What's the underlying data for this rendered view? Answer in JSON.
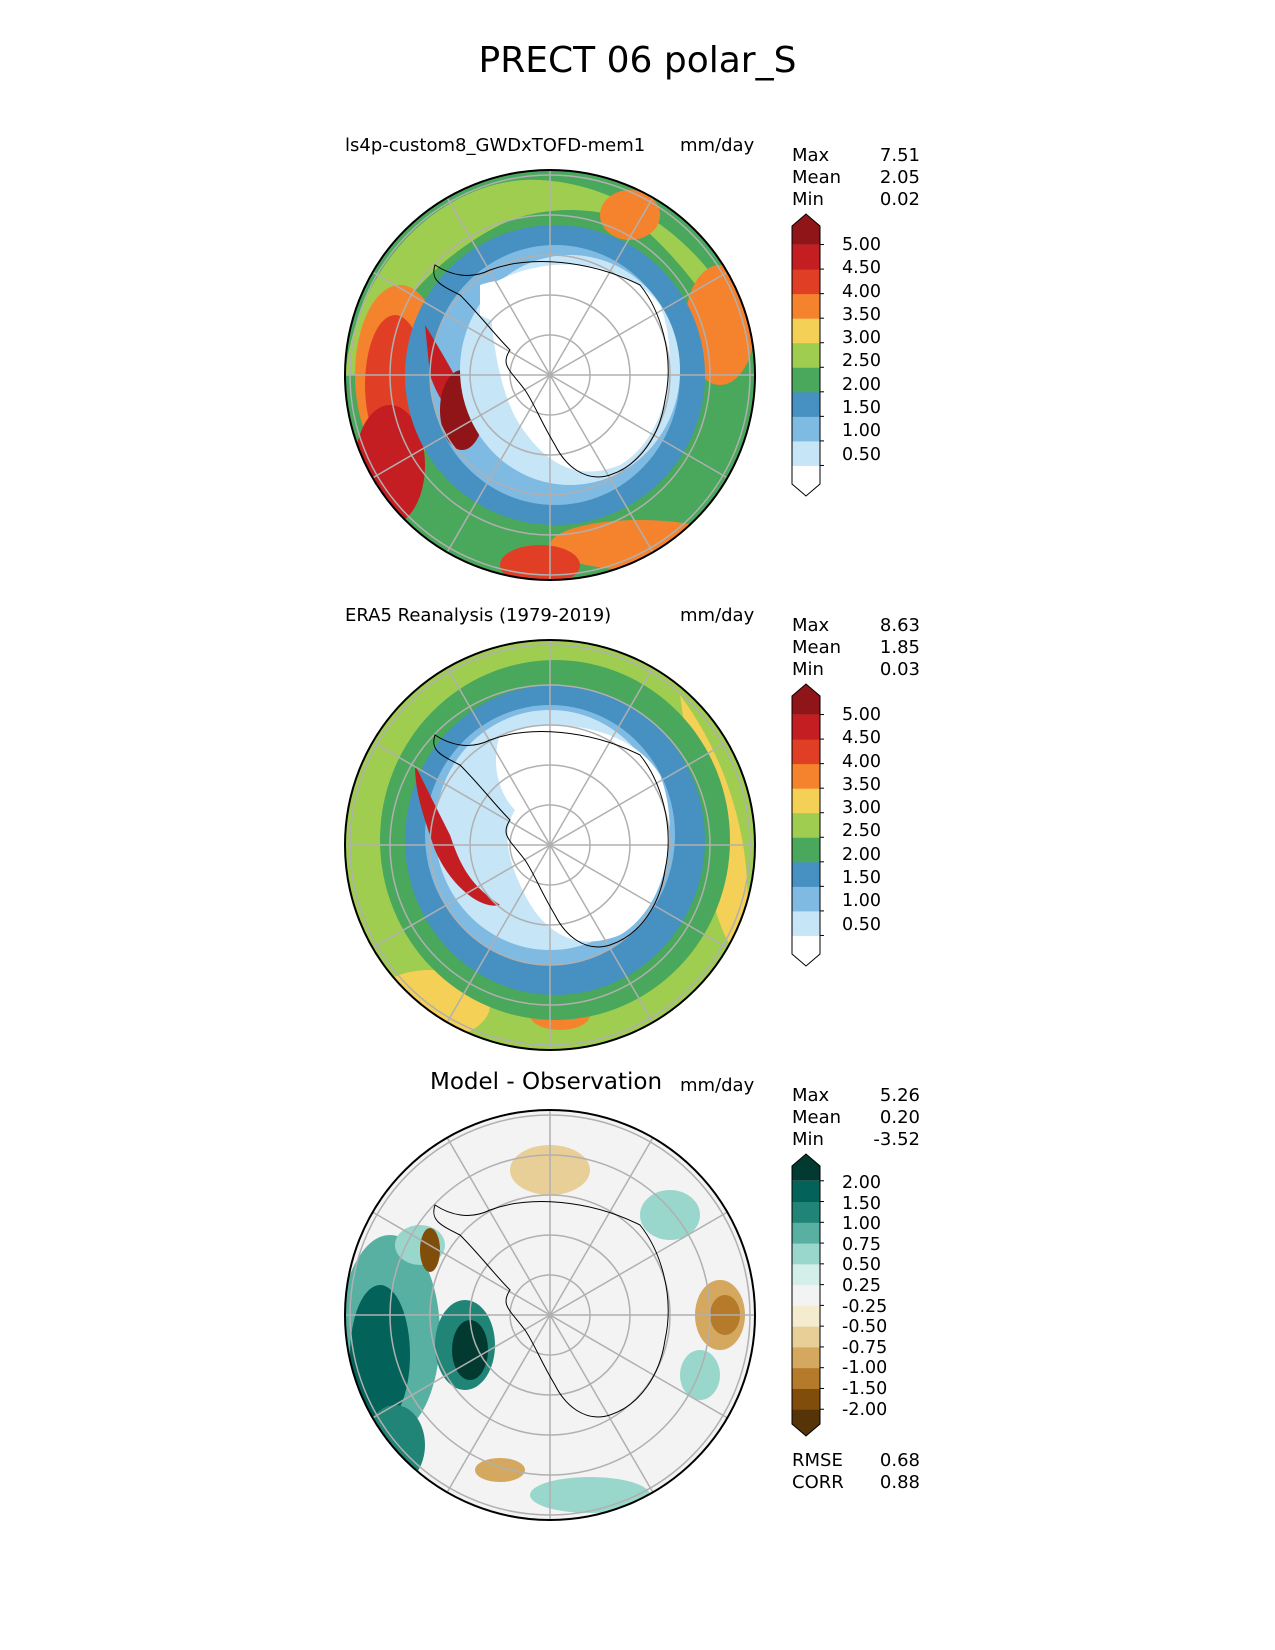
{
  "title": "PRECT 06 polar_S",
  "colors": {
    "precip": [
      "#ffffff",
      "#c6e6f7",
      "#7fbae3",
      "#4690c2",
      "#4aa85c",
      "#9fcd50",
      "#f5d056",
      "#f5832e",
      "#e03f26",
      "#c41e23",
      "#8f1518"
    ],
    "diff": [
      "#563407",
      "#804d0a",
      "#b57a2a",
      "#d4a85e",
      "#e8cf97",
      "#f5ebcf",
      "#f3f3f3",
      "#d4eee9",
      "#99d6cb",
      "#58b0a2",
      "#208576",
      "#03635a",
      "#023a31"
    ]
  },
  "panels": [
    {
      "title": "ls4p-custom8_GWDxTOFD-mem1",
      "units": "mm/day",
      "stats": [
        {
          "label": "Max",
          "value": "7.51"
        },
        {
          "label": "Mean",
          "value": "2.05"
        },
        {
          "label": "Min",
          "value": "0.02"
        }
      ]
    },
    {
      "title": "ERA5 Reanalysis (1979-2019)",
      "units": "mm/day",
      "stats": [
        {
          "label": "Max",
          "value": "8.63"
        },
        {
          "label": "Mean",
          "value": "1.85"
        },
        {
          "label": "Min",
          "value": "0.03"
        }
      ]
    },
    {
      "title": "Model - Observation",
      "units": "mm/day",
      "stats": [
        {
          "label": "Max",
          "value": "5.26"
        },
        {
          "label": "Mean",
          "value": "0.20"
        },
        {
          "label": "Min",
          "value": "-3.52"
        }
      ],
      "extra_stats": [
        {
          "label": "RMSE",
          "value": "0.68"
        },
        {
          "label": "CORR",
          "value": "0.88"
        }
      ]
    }
  ],
  "chart_data": [
    {
      "type": "heatmap",
      "title": "ls4p-custom8_GWDxTOFD-mem1",
      "units": "mm/day",
      "projection": "south-polar-stereographic",
      "levels": [
        0.5,
        1.0,
        1.5,
        2.0,
        2.5,
        3.0,
        3.5,
        4.0,
        4.5,
        5.0
      ],
      "level_labels": [
        "0.50",
        "1.00",
        "1.50",
        "2.00",
        "2.50",
        "3.00",
        "3.50",
        "4.00",
        "4.50",
        "5.00"
      ],
      "stats": {
        "max": 7.51,
        "mean": 2.05,
        "min": 0.02
      }
    },
    {
      "type": "heatmap",
      "title": "ERA5 Reanalysis (1979-2019)",
      "units": "mm/day",
      "projection": "south-polar-stereographic",
      "levels": [
        0.5,
        1.0,
        1.5,
        2.0,
        2.5,
        3.0,
        3.5,
        4.0,
        4.5,
        5.0
      ],
      "level_labels": [
        "0.50",
        "1.00",
        "1.50",
        "2.00",
        "2.50",
        "3.00",
        "3.50",
        "4.00",
        "4.50",
        "5.00"
      ],
      "stats": {
        "max": 8.63,
        "mean": 1.85,
        "min": 0.03
      }
    },
    {
      "type": "heatmap",
      "title": "Model - Observation",
      "units": "mm/day",
      "projection": "south-polar-stereographic",
      "levels": [
        -2.0,
        -1.5,
        -1.0,
        -0.75,
        -0.5,
        -0.25,
        0.25,
        0.5,
        0.75,
        1.0,
        1.5,
        2.0
      ],
      "level_labels": [
        "-2.00",
        "-1.50",
        "-1.00",
        "-0.75",
        "-0.50",
        "-0.25",
        "0.25",
        "0.50",
        "0.75",
        "1.00",
        "1.50",
        "2.00"
      ],
      "stats": {
        "max": 5.26,
        "mean": 0.2,
        "min": -3.52,
        "rmse": 0.68,
        "corr": 0.88
      }
    }
  ]
}
